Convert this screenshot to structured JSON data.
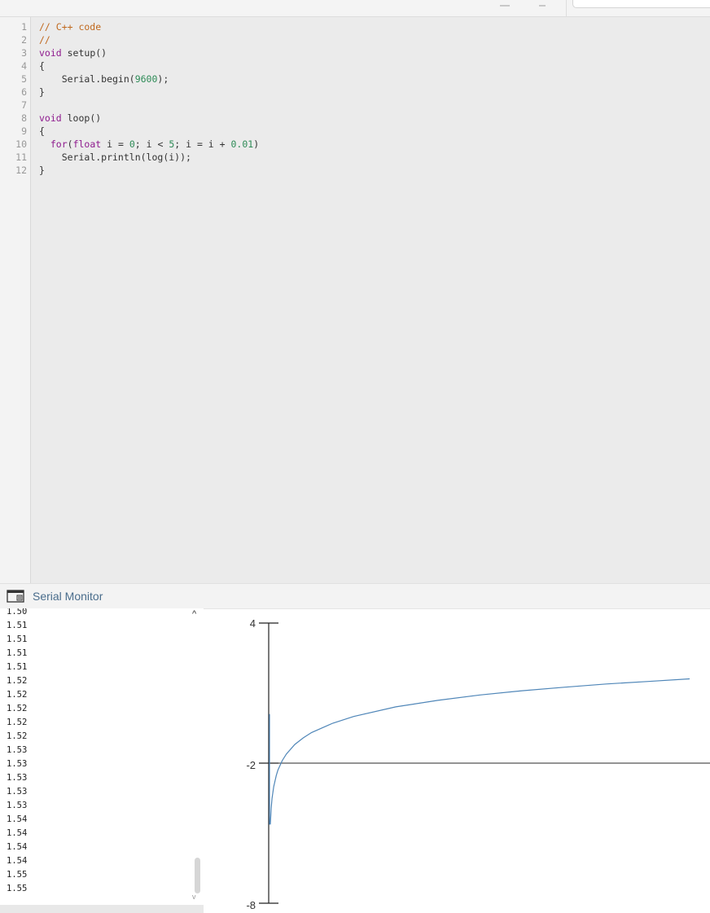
{
  "editor": {
    "line_numbers": [
      "1",
      "2",
      "3",
      "4",
      "5",
      "6",
      "7",
      "8",
      "9",
      "10",
      "11",
      "12"
    ],
    "lines": [
      "// C++ code",
      "//",
      "void setup()",
      "{",
      "    Serial.begin(9600);",
      "}",
      "",
      "void loop()",
      "{",
      "  for(float i = 0; i < 5; i = i + 0.01)",
      "    Serial.println(log(i));",
      "}"
    ]
  },
  "monitor": {
    "title": "Serial Monitor",
    "icon": "window-icon",
    "scroll_up_icon": "chevron-up-icon",
    "scroll_down_icon": "chevron-down-icon",
    "output": [
      "1.50",
      "1.51",
      "1.51",
      "1.51",
      "1.51",
      "1.52",
      "1.52",
      "1.52",
      "1.52",
      "1.52",
      "1.53",
      "1.53",
      "1.53",
      "1.53",
      "1.53",
      "1.54",
      "1.54",
      "1.54",
      "1.54",
      "1.55",
      "1.55"
    ]
  },
  "chart_data": {
    "type": "line",
    "title": "",
    "xlabel": "",
    "ylabel": "",
    "ylim": [
      -8,
      4
    ],
    "yticks": [
      "4",
      "-2",
      "-8"
    ],
    "grid": false,
    "series": [
      {
        "color": "#4f86b8",
        "x": [
          0.01,
          0.02,
          0.03,
          0.05,
          0.08,
          0.1,
          0.15,
          0.2,
          0.3,
          0.4,
          0.5,
          0.75,
          1.0,
          1.5,
          2.0,
          2.5,
          3.0,
          3.5,
          4.0,
          4.5,
          4.99
        ],
        "y": [
          -4.61,
          -3.91,
          -3.51,
          -3.0,
          -2.53,
          -2.3,
          -1.9,
          -1.61,
          -1.2,
          -0.92,
          -0.69,
          -0.29,
          0.0,
          0.41,
          0.69,
          0.92,
          1.1,
          1.25,
          1.39,
          1.5,
          1.61
        ]
      }
    ]
  }
}
